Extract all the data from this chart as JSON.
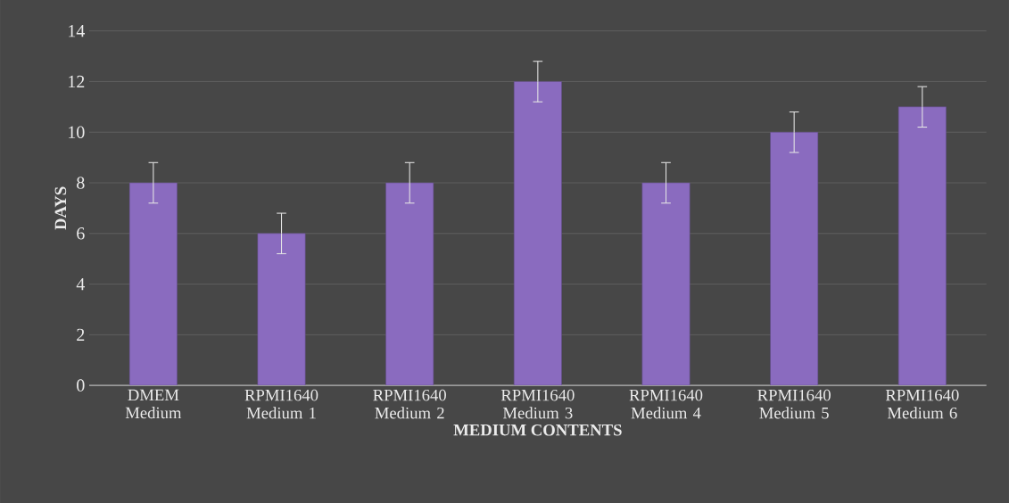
{
  "chart_data": {
    "type": "bar",
    "xlabel": "MEDIUM CONTENTS",
    "ylabel": "DAYS",
    "categories": [
      "DMEM Medium",
      "RPMI1640 Medium 1",
      "RPMI1640 Medium 2",
      "RPMI1640 Medium 3",
      "RPMI1640 Medium 4",
      "RPMI1640 Medium 5",
      "RPMI1640 Medium 6"
    ],
    "values": [
      8,
      6,
      8,
      12,
      8,
      10,
      11
    ],
    "errors": [
      0.8,
      0.8,
      0.8,
      0.8,
      0.8,
      0.8,
      0.8
    ],
    "color": "#8a6bbf",
    "ylim": [
      0,
      14
    ],
    "yticks": [
      0,
      2,
      4,
      6,
      8,
      10,
      12,
      14
    ],
    "grid": "y"
  }
}
